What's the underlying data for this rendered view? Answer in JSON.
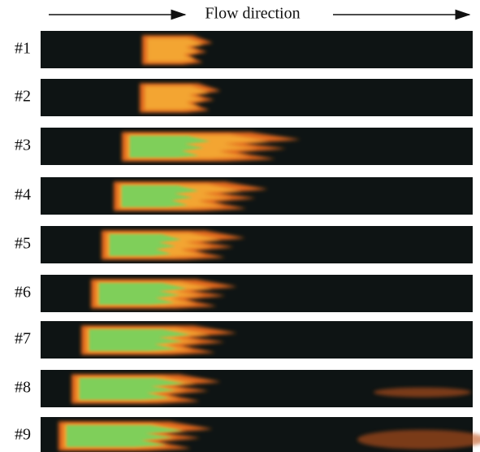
{
  "header": {
    "title": "Flow direction"
  },
  "rows": [
    {
      "label": "#1"
    },
    {
      "label": "#2"
    },
    {
      "label": "#3"
    },
    {
      "label": "#4"
    },
    {
      "label": "#5"
    },
    {
      "label": "#6"
    },
    {
      "label": "#7"
    },
    {
      "label": "#8"
    },
    {
      "label": "#9"
    }
  ]
}
